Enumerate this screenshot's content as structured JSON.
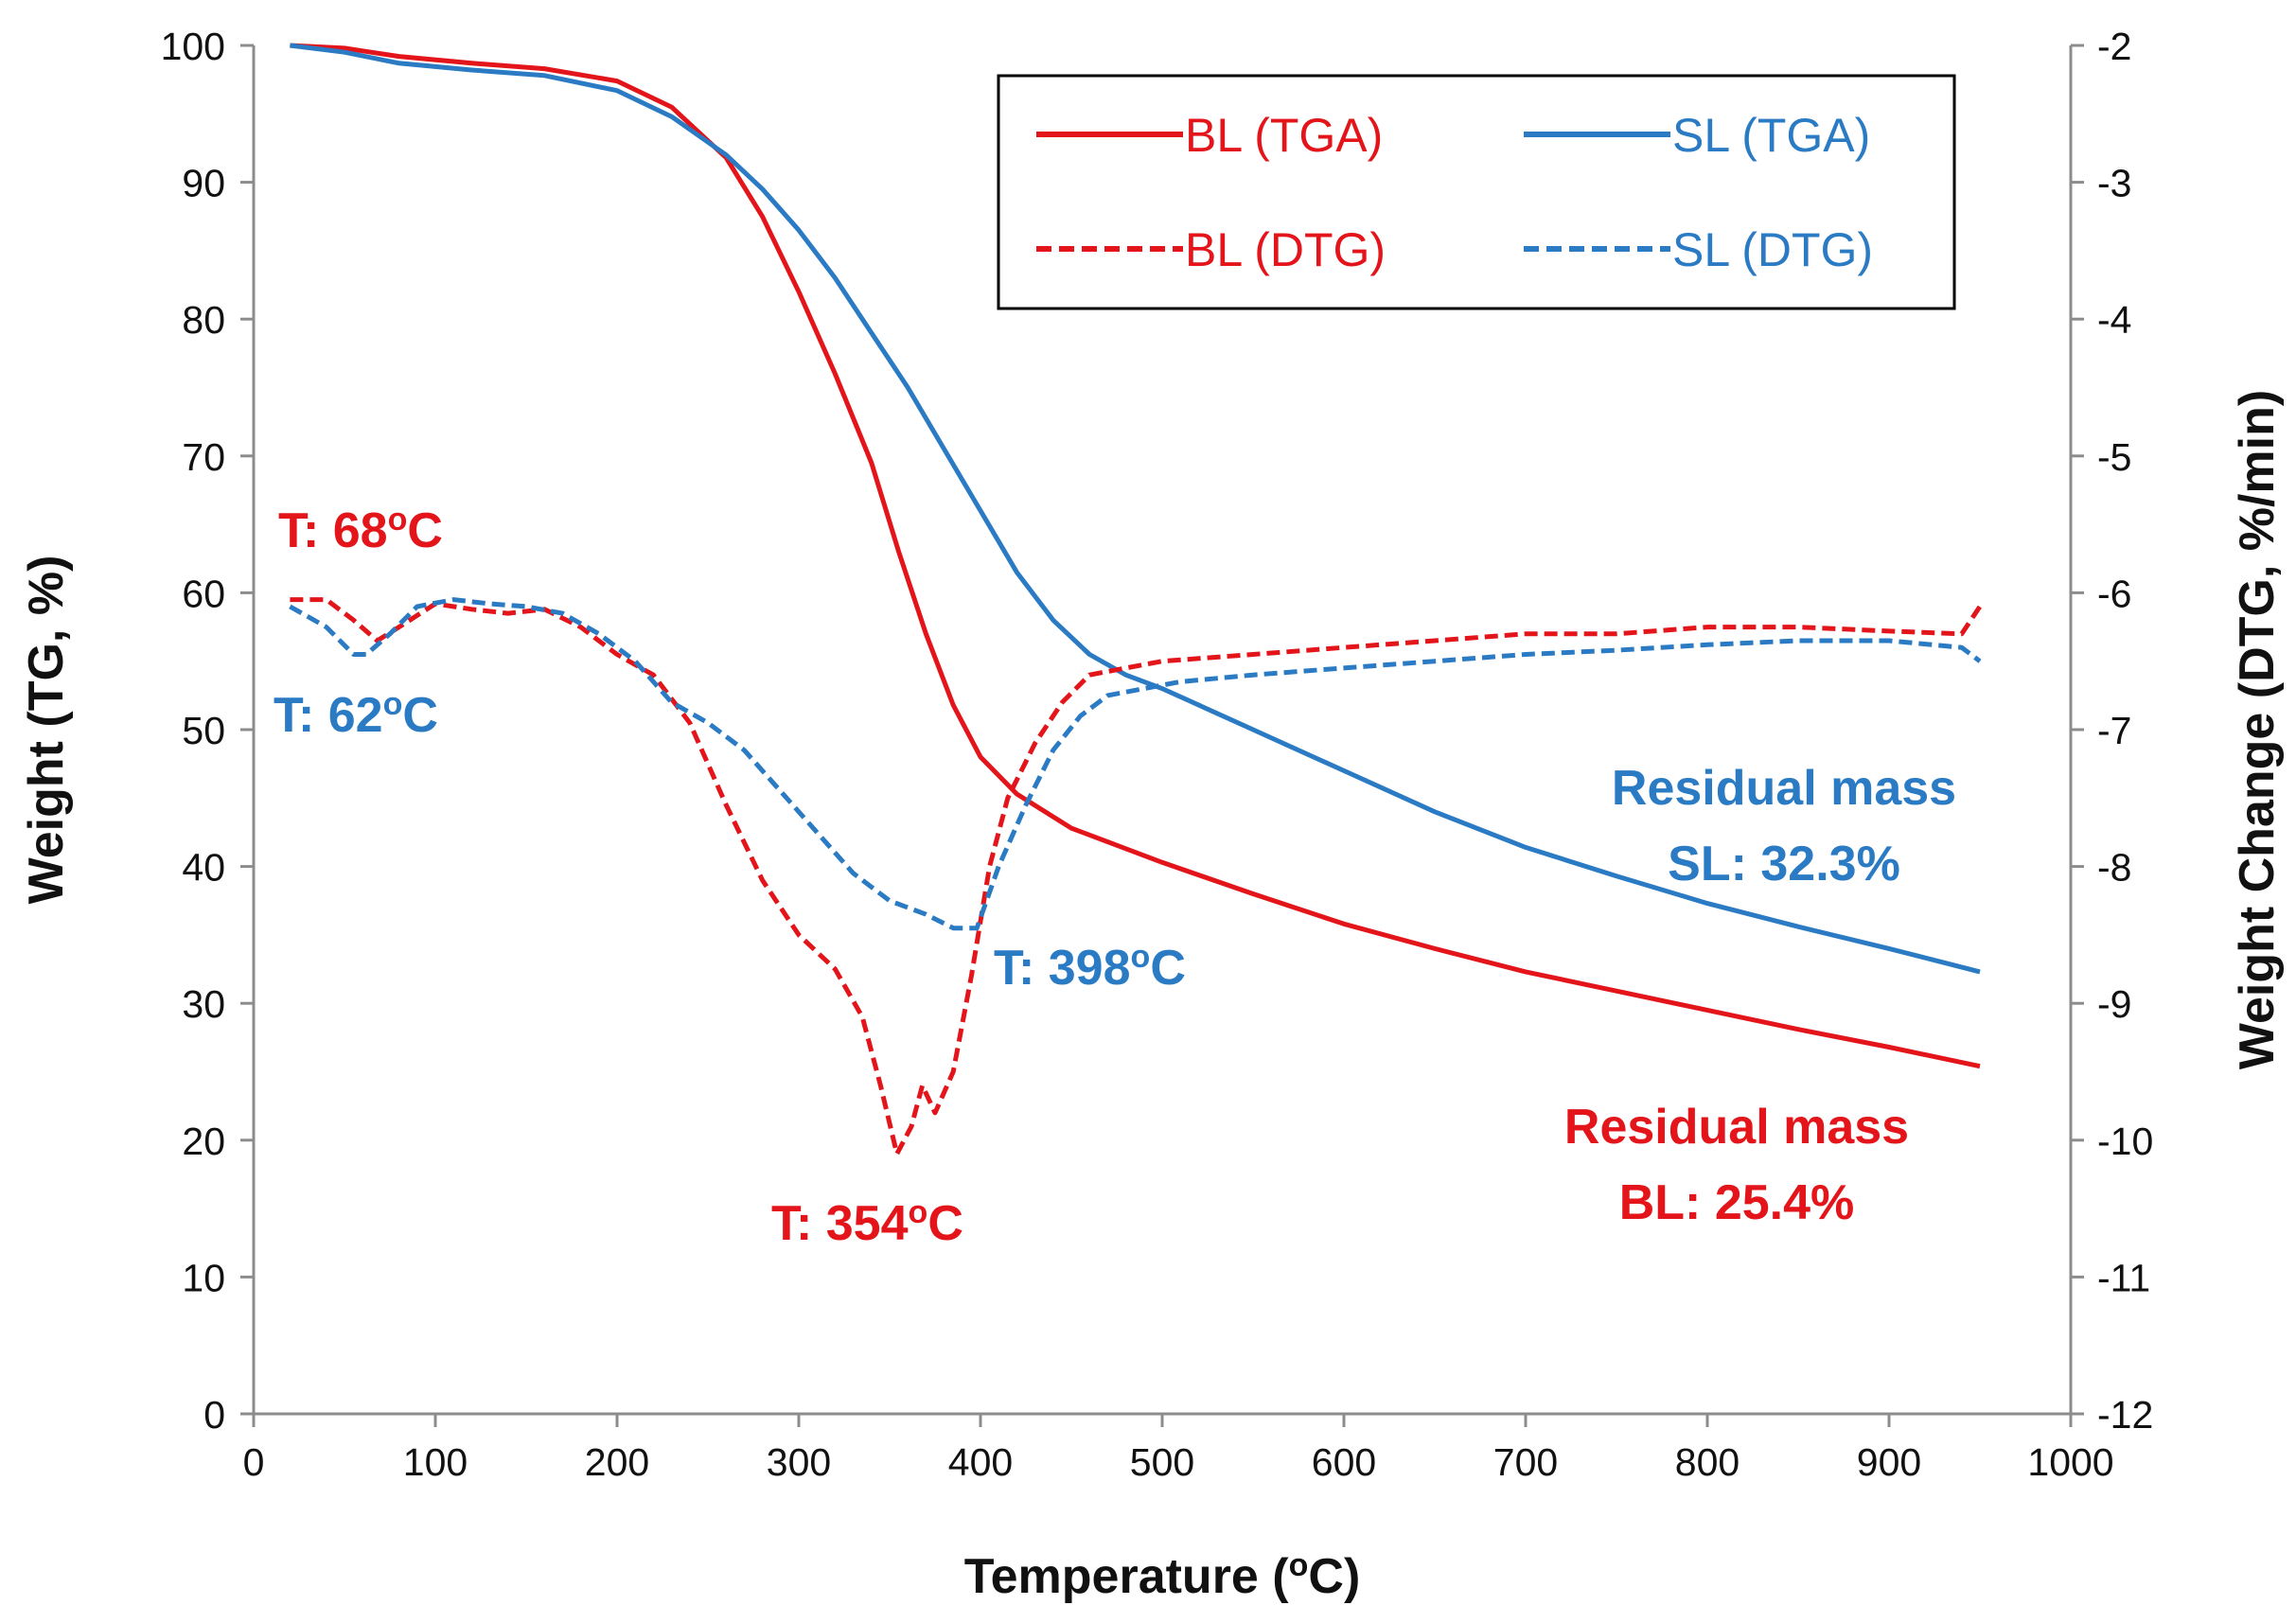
{
  "chart_data": {
    "type": "line",
    "xlabel": "Temperature (°C)",
    "xlabel_parts": {
      "pre": "Temperature (",
      "sup": "o",
      "post": "C)"
    },
    "ylabel": "Weight (TG, %)",
    "y2label": "Weight Change (DTG, %/min)",
    "xlim": [
      0,
      1000
    ],
    "ylim": [
      0,
      100
    ],
    "y2lim": [
      -12,
      -2
    ],
    "xticks": [
      "0",
      "100",
      "200",
      "300",
      "400",
      "500",
      "600",
      "700",
      "800",
      "900",
      "1000"
    ],
    "xtick_values": [
      0,
      100,
      200,
      300,
      400,
      500,
      600,
      700,
      800,
      900,
      1000
    ],
    "yticks": [
      "0",
      "10",
      "20",
      "30",
      "40",
      "50",
      "60",
      "70",
      "80",
      "90",
      "100"
    ],
    "ytick_values": [
      0,
      10,
      20,
      30,
      40,
      50,
      60,
      70,
      80,
      90,
      100
    ],
    "y2ticks": [
      "-12",
      "-11",
      "-10",
      "-9",
      "-8",
      "-7",
      "-6",
      "-5",
      "-4",
      "-3",
      "-2"
    ],
    "y2tick_values": [
      -12,
      -11,
      -10,
      -9,
      -8,
      -7,
      -6,
      -5,
      -4,
      -3,
      -2
    ],
    "legend_position": "top-right",
    "colors": {
      "BL": "#e3151a",
      "SL": "#2a7bc4"
    },
    "series": [
      {
        "name": "BL (TGA)",
        "axis": "left",
        "color": "#e3151a",
        "style": "solid",
        "x": [
          20,
          50,
          80,
          120,
          160,
          200,
          230,
          260,
          280,
          300,
          320,
          340,
          355,
          370,
          385,
          400,
          420,
          450,
          480,
          500,
          550,
          600,
          650,
          700,
          750,
          800,
          850,
          900,
          950
        ],
        "y": [
          100,
          99.8,
          99.2,
          98.7,
          98.3,
          97.4,
          95.5,
          91.8,
          87.5,
          82.0,
          76.0,
          69.5,
          63.0,
          57.0,
          51.8,
          48.0,
          45.3,
          42.8,
          41.3,
          40.3,
          38.0,
          35.8,
          34.0,
          32.3,
          30.9,
          29.5,
          28.1,
          26.8,
          25.4
        ]
      },
      {
        "name": "SL (TGA)",
        "axis": "left",
        "color": "#2a7bc4",
        "style": "solid",
        "x": [
          20,
          50,
          80,
          120,
          160,
          200,
          230,
          260,
          280,
          300,
          320,
          340,
          360,
          380,
          400,
          420,
          440,
          460,
          480,
          500,
          550,
          600,
          650,
          700,
          750,
          800,
          850,
          900,
          950
        ],
        "y": [
          100,
          99.5,
          98.7,
          98.2,
          97.8,
          96.7,
          94.8,
          92.0,
          89.5,
          86.5,
          83.0,
          79.0,
          75.0,
          70.5,
          66.0,
          61.5,
          58.0,
          55.5,
          54.0,
          53.0,
          50.0,
          47.0,
          44.0,
          41.4,
          39.3,
          37.3,
          35.6,
          34.0,
          32.3
        ]
      },
      {
        "name": "BL (DTG)",
        "axis": "right",
        "color": "#e3151a",
        "style": "dashed",
        "x": [
          20,
          40,
          55,
          68,
          80,
          100,
          120,
          140,
          160,
          180,
          200,
          220,
          240,
          260,
          280,
          300,
          320,
          335,
          345,
          354,
          362,
          368,
          375,
          385,
          395,
          405,
          415,
          430,
          445,
          460,
          480,
          500,
          550,
          600,
          650,
          700,
          750,
          800,
          850,
          900,
          940,
          950
        ],
        "y": [
          -6.05,
          -6.05,
          -6.2,
          -6.35,
          -6.25,
          -6.08,
          -6.12,
          -6.15,
          -6.12,
          -6.25,
          -6.45,
          -6.6,
          -6.95,
          -7.55,
          -8.1,
          -8.5,
          -8.75,
          -9.1,
          -9.6,
          -10.1,
          -9.9,
          -9.6,
          -9.8,
          -9.5,
          -8.8,
          -8.0,
          -7.5,
          -7.1,
          -6.8,
          -6.6,
          -6.55,
          -6.5,
          -6.45,
          -6.4,
          -6.35,
          -6.3,
          -6.3,
          -6.25,
          -6.25,
          -6.28,
          -6.3,
          -6.1
        ]
      },
      {
        "name": "SL (DTG)",
        "axis": "right",
        "color": "#2a7bc4",
        "style": "dashed",
        "x": [
          20,
          40,
          55,
          62,
          75,
          90,
          110,
          130,
          150,
          170,
          190,
          210,
          230,
          250,
          270,
          290,
          310,
          330,
          350,
          370,
          385,
          398,
          410,
          425,
          440,
          455,
          470,
          490,
          510,
          550,
          600,
          650,
          700,
          750,
          800,
          850,
          900,
          940,
          950
        ],
        "y": [
          -6.1,
          -6.25,
          -6.45,
          -6.45,
          -6.3,
          -6.1,
          -6.05,
          -6.08,
          -6.1,
          -6.15,
          -6.3,
          -6.5,
          -6.8,
          -6.95,
          -7.15,
          -7.45,
          -7.75,
          -8.05,
          -8.25,
          -8.35,
          -8.45,
          -8.45,
          -8.0,
          -7.55,
          -7.15,
          -6.9,
          -6.75,
          -6.7,
          -6.65,
          -6.6,
          -6.55,
          -6.5,
          -6.45,
          -6.42,
          -6.38,
          -6.35,
          -6.35,
          -6.4,
          -6.5
        ]
      }
    ],
    "annotations": [
      {
        "id": "bl68",
        "pre": "T: 68",
        "sup": "o",
        "post": "C",
        "color": "#e3151a"
      },
      {
        "id": "sl62",
        "pre": "T: 62",
        "sup": "o",
        "post": "C",
        "color": "#2a7bc4"
      },
      {
        "id": "bl354",
        "pre": "T: 354",
        "sup": "o",
        "post": "C",
        "color": "#e3151a"
      },
      {
        "id": "sl398",
        "pre": "T: 398",
        "sup": "o",
        "post": "C",
        "color": "#2a7bc4"
      },
      {
        "id": "resSL",
        "line1": "Residual mass",
        "line2": "SL: 32.3%",
        "color": "#2a7bc4"
      },
      {
        "id": "resBL",
        "line1": "Residual mass",
        "line2": "BL: 25.4%",
        "color": "#e3151a"
      }
    ]
  }
}
